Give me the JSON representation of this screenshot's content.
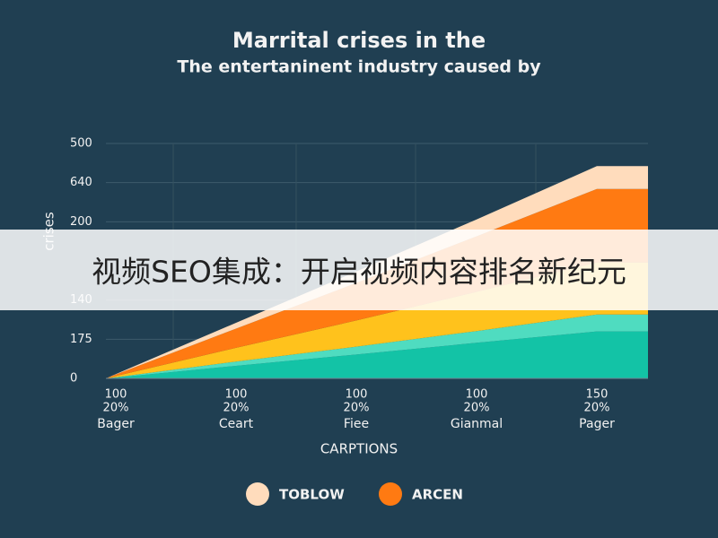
{
  "chart_data": {
    "type": "stacked_area",
    "title": "Marrital crises in the",
    "subtitle": "The entertaninent industry caused by",
    "xlabel": "CARPTIONS",
    "ylabel": "crises",
    "categories": [
      "Bager",
      "Ceart",
      "Fiee",
      "Gianmal",
      "Pager"
    ],
    "category_numbers": [
      "100",
      "100",
      "100",
      "100",
      "150"
    ],
    "category_percents": [
      "20%",
      "20%",
      "20%",
      "20%",
      "20%"
    ],
    "series": [
      {
        "color": "#13c3a6",
        "values": [
          2,
          32,
          61,
          91,
          120
        ]
      },
      {
        "color": "#4fdcc0",
        "values": [
          1,
          11,
          20,
          30,
          43
        ]
      },
      {
        "color": "#ffc21c",
        "values": [
          3,
          35,
          67,
          100,
          133
        ]
      },
      {
        "name": "ARCEN",
        "color": "#ff7a12",
        "values": [
          4,
          49,
          96,
          142,
          188
        ]
      },
      {
        "name": "TOBLOW",
        "color": "#ffdcbc",
        "values": [
          1,
          15,
          29,
          43,
          58
        ]
      }
    ],
    "ylim": [
      0,
      600
    ],
    "yticks": [
      0,
      {
        "value": 100,
        "label": "175"
      },
      {
        "value": 200,
        "label": "140"
      },
      {
        "value": 400,
        "label": "200"
      },
      {
        "value": 500,
        "label": "640"
      },
      {
        "value": 600,
        "label": "500"
      }
    ],
    "grid": true,
    "legend": "bottom"
  },
  "banner": "视频SEO集成：开启视频内容排名新纪元"
}
